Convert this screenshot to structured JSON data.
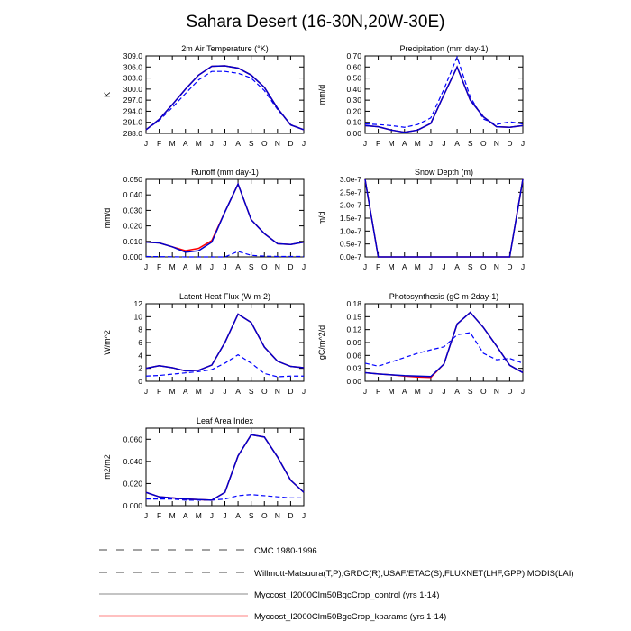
{
  "title": "Sahara Desert (16-30N,20W-30E)",
  "months": [
    "J",
    "F",
    "M",
    "A",
    "M",
    "J",
    "J",
    "A",
    "S",
    "O",
    "N",
    "D",
    "J"
  ],
  "colors": {
    "obs": "#0000ff",
    "control": "#0000cc",
    "kparams": "#ff0000",
    "legend_control": "#888888"
  },
  "legend": [
    {
      "label": "CMC 1980-1996",
      "style": "dashed"
    },
    {
      "label": "Willmott-Matsuura(T,P),GRDC(R),USAF/ETAC(S),FLUXNET(LHF,GPP),MODIS(LAI)",
      "style": "dashed"
    },
    {
      "label": "Myccost_I2000Clm50BgcCrop_control (yrs 1-14)",
      "style": "solid-gray"
    },
    {
      "label": "Myccost_I2000Clm50BgcCrop_kparams (yrs 1-14)",
      "style": "solid-red"
    }
  ],
  "chart_data": [
    {
      "type": "line",
      "title": "2m Air Temperature (°K)",
      "ylabel": "K",
      "ylim": [
        288,
        309
      ],
      "yticks": [
        "288.0",
        "291.0",
        "294.0",
        "297.0",
        "300.0",
        "303.0",
        "306.0",
        "309.0"
      ],
      "series": [
        {
          "name": "obs",
          "values": [
            289,
            291.5,
            295,
            298.8,
            302.5,
            304.8,
            304.8,
            304.3,
            303,
            299.6,
            294.5,
            290.4,
            289
          ]
        },
        {
          "name": "kparams",
          "values": [
            289,
            291.8,
            295.8,
            300,
            303.8,
            306.2,
            306.3,
            305.7,
            303.8,
            300.5,
            294.8,
            290.3,
            289
          ]
        },
        {
          "name": "control",
          "values": [
            289,
            291.8,
            295.8,
            300,
            303.8,
            306.2,
            306.3,
            305.7,
            303.8,
            300.5,
            294.8,
            290.3,
            289
          ]
        }
      ]
    },
    {
      "type": "line",
      "title": "Precipitation (mm day-1)",
      "ylabel": "mm/d",
      "ylim": [
        0,
        0.7
      ],
      "yticks": [
        "0.00",
        "0.10",
        "0.20",
        "0.30",
        "0.40",
        "0.50",
        "0.60",
        "0.70"
      ],
      "series": [
        {
          "name": "obs",
          "values": [
            0.085,
            0.08,
            0.07,
            0.055,
            0.08,
            0.14,
            0.4,
            0.69,
            0.33,
            0.13,
            0.08,
            0.105,
            0.085
          ]
        },
        {
          "name": "kparams",
          "values": [
            0.07,
            0.06,
            0.03,
            0.01,
            0.03,
            0.09,
            0.35,
            0.6,
            0.3,
            0.15,
            0.06,
            0.055,
            0.07
          ]
        },
        {
          "name": "control",
          "values": [
            0.07,
            0.06,
            0.03,
            0.01,
            0.03,
            0.09,
            0.35,
            0.6,
            0.3,
            0.15,
            0.06,
            0.055,
            0.07
          ]
        }
      ]
    },
    {
      "type": "line",
      "title": "Runoff (mm day-1)",
      "ylabel": "mm/d",
      "ylim": [
        0,
        0.05
      ],
      "yticks": [
        "0.000",
        "0.010",
        "0.020",
        "0.030",
        "0.040",
        "0.050"
      ],
      "series": [
        {
          "name": "obs",
          "values": [
            0.0003,
            0.0002,
            0.0001,
            0,
            0,
            0,
            0,
            0.0035,
            0.001,
            0.0005,
            0.0003,
            0.0003,
            0.0003
          ]
        },
        {
          "name": "kparams",
          "values": [
            0.0095,
            0.009,
            0.0065,
            0.004,
            0.0055,
            0.0105,
            0.029,
            0.047,
            0.024,
            0.015,
            0.0085,
            0.008,
            0.0095
          ]
        },
        {
          "name": "control",
          "values": [
            0.0095,
            0.009,
            0.0065,
            0.003,
            0.004,
            0.0095,
            0.029,
            0.047,
            0.024,
            0.015,
            0.0085,
            0.008,
            0.0095
          ]
        }
      ]
    },
    {
      "type": "line",
      "title": "Snow Depth (m)",
      "ylabel": "m/d",
      "ylim": [
        0,
        3e-07
      ],
      "yticks": [
        "0.0e-7",
        "0.5e-7",
        "1.0e-7",
        "1.5e-7",
        "2.0e-7",
        "2.5e-7",
        "3.0e-7"
      ],
      "series": [
        {
          "name": "kparams",
          "values": [
            3e-07,
            0,
            0,
            0,
            0,
            0,
            0,
            0,
            0,
            0,
            0,
            0,
            3e-07
          ]
        },
        {
          "name": "control",
          "values": [
            3e-07,
            0,
            0,
            0,
            0,
            0,
            0,
            0,
            0,
            0,
            0,
            0,
            3e-07
          ]
        }
      ]
    },
    {
      "type": "line",
      "title": "Latent Heat Flux (W m-2)",
      "ylabel": "W/m^2",
      "ylim": [
        0,
        12
      ],
      "yticks": [
        "0",
        "2",
        "4",
        "6",
        "8",
        "10",
        "12"
      ],
      "series": [
        {
          "name": "obs",
          "values": [
            0.8,
            0.9,
            1.1,
            1.3,
            1.5,
            1.8,
            2.8,
            4.1,
            2.8,
            1.2,
            0.7,
            0.8,
            0.8
          ]
        },
        {
          "name": "kparams",
          "values": [
            2,
            2.4,
            2.1,
            1.6,
            1.7,
            2.5,
            6,
            10.4,
            9.1,
            5.3,
            3.1,
            2.3,
            2.1
          ]
        },
        {
          "name": "control",
          "values": [
            2,
            2.4,
            2.1,
            1.6,
            1.7,
            2.5,
            6,
            10.4,
            9.1,
            5.3,
            3.1,
            2.3,
            2.1
          ]
        }
      ]
    },
    {
      "type": "line",
      "title": "Photosynthesis (gC m-2day-1)",
      "ylabel": "gC/m^2/d",
      "ylim": [
        0,
        0.18
      ],
      "yticks": [
        "0.00",
        "0.03",
        "0.06",
        "0.09",
        "0.12",
        "0.15",
        "0.18"
      ],
      "series": [
        {
          "name": "obs",
          "values": [
            0.042,
            0.035,
            0.045,
            0.055,
            0.065,
            0.073,
            0.08,
            0.108,
            0.113,
            0.065,
            0.05,
            0.053,
            0.042
          ]
        },
        {
          "name": "kparams",
          "values": [
            0.02,
            0.017,
            0.015,
            0.012,
            0.01,
            0.009,
            0.04,
            0.133,
            0.16,
            0.125,
            0.082,
            0.037,
            0.02
          ]
        },
        {
          "name": "control",
          "values": [
            0.02,
            0.017,
            0.015,
            0.013,
            0.012,
            0.011,
            0.04,
            0.133,
            0.16,
            0.125,
            0.082,
            0.037,
            0.02
          ]
        }
      ]
    },
    {
      "type": "line",
      "title": "Leaf Area Index",
      "ylabel": "m2/m2",
      "ylim": [
        0,
        0.07
      ],
      "yticks": [
        "0.000",
        "0.020",
        "0.040",
        "0.060"
      ],
      "ytick_values": [
        0,
        0.02,
        0.04,
        0.06
      ],
      "series": [
        {
          "name": "obs",
          "values": [
            0.006,
            0.006,
            0.006,
            0.005,
            0.005,
            0.005,
            0.006,
            0.009,
            0.01,
            0.009,
            0.008,
            0.007,
            0.007
          ]
        },
        {
          "name": "kparams",
          "values": [
            0.012,
            0.008,
            0.007,
            0.006,
            0.0055,
            0.005,
            0.012,
            0.045,
            0.064,
            0.062,
            0.044,
            0.023,
            0.012
          ]
        },
        {
          "name": "control",
          "values": [
            0.012,
            0.008,
            0.007,
            0.006,
            0.0055,
            0.005,
            0.012,
            0.045,
            0.064,
            0.062,
            0.044,
            0.023,
            0.012
          ]
        }
      ]
    }
  ]
}
